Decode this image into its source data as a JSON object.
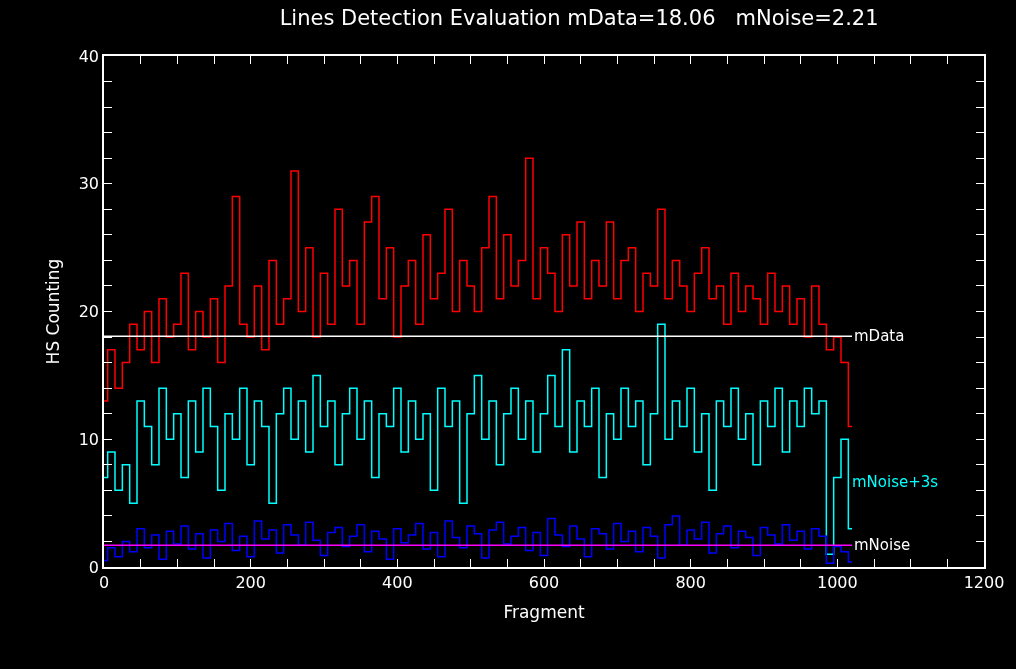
{
  "chart_data": {
    "type": "step",
    "title": "Lines Detection Evaluation mData=18.06   mNoise=2.21",
    "xlabel": "Fragment",
    "ylabel": "HS Counting",
    "x": [
      0,
      10,
      20,
      30,
      40,
      50,
      60,
      70,
      80,
      90,
      100,
      110,
      120,
      130,
      140,
      150,
      160,
      170,
      180,
      190,
      200,
      210,
      220,
      230,
      240,
      250,
      260,
      270,
      280,
      290,
      300,
      310,
      320,
      330,
      340,
      350,
      360,
      370,
      380,
      390,
      400,
      410,
      420,
      430,
      440,
      450,
      460,
      470,
      480,
      490,
      500,
      510,
      520,
      530,
      540,
      550,
      560,
      570,
      580,
      590,
      600,
      610,
      620,
      630,
      640,
      650,
      660,
      670,
      680,
      690,
      700,
      710,
      720,
      730,
      740,
      750,
      760,
      770,
      780,
      790,
      800,
      810,
      820,
      830,
      840,
      850,
      860,
      870,
      880,
      890,
      900,
      910,
      920,
      930,
      940,
      950,
      960,
      970,
      980,
      990,
      1000,
      1010,
      1020
    ],
    "series": [
      {
        "color": "#ff0000",
        "values": [
          13,
          17,
          14,
          16,
          19,
          17,
          20,
          16,
          21,
          18,
          19,
          23,
          17,
          20,
          18,
          21,
          16,
          22,
          29,
          19,
          18,
          22,
          17,
          24,
          19,
          21,
          31,
          20,
          25,
          18,
          23,
          19,
          28,
          22,
          24,
          19,
          27,
          29,
          21,
          25,
          18,
          22,
          24,
          19,
          26,
          21,
          23,
          28,
          20,
          24,
          22,
          20,
          25,
          29,
          21,
          26,
          22,
          24,
          32,
          21,
          25,
          23,
          20,
          26,
          22,
          27,
          21,
          24,
          22,
          27,
          21,
          24,
          25,
          20,
          23,
          22,
          28,
          21,
          24,
          22,
          20,
          23,
          25,
          21,
          22,
          19,
          23,
          20,
          22,
          21,
          19,
          23,
          20,
          22,
          19,
          21,
          18,
          22,
          19,
          17,
          18,
          16,
          11
        ]
      },
      {
        "name": "mNoise+3s",
        "color": "#00ffff",
        "values": [
          7,
          9,
          6,
          8,
          5,
          13,
          11,
          8,
          14,
          10,
          12,
          7,
          13,
          9,
          14,
          11,
          6,
          12,
          10,
          14,
          8,
          13,
          11,
          5,
          12,
          14,
          10,
          13,
          9,
          15,
          11,
          13,
          8,
          12,
          14,
          10,
          13,
          7,
          12,
          11,
          14,
          9,
          13,
          10,
          12,
          6,
          14,
          11,
          13,
          5,
          12,
          15,
          10,
          13,
          8,
          12,
          14,
          10,
          13,
          9,
          12,
          15,
          11,
          17,
          9,
          13,
          11,
          14,
          7,
          12,
          10,
          14,
          11,
          13,
          8,
          12,
          19,
          10,
          13,
          11,
          14,
          9,
          12,
          6,
          13,
          11,
          14,
          10,
          12,
          8,
          13,
          11,
          14,
          9,
          13,
          11,
          14,
          12,
          13,
          1,
          7,
          10,
          3
        ]
      },
      {
        "color": "#0000ff",
        "values": [
          0.5,
          1.5,
          0.8,
          2,
          1.2,
          3,
          1.5,
          2.5,
          0.6,
          2.8,
          1.8,
          3.2,
          1.4,
          2.6,
          0.7,
          2.9,
          2,
          3.4,
          1.3,
          2.4,
          0.8,
          3.6,
          2.2,
          2.9,
          1.1,
          3.3,
          2.5,
          1.7,
          3.5,
          2.1,
          0.9,
          2.7,
          3.1,
          1.6,
          2.4,
          3.3,
          1.2,
          2.8,
          2.2,
          0.6,
          3,
          1.9,
          2.5,
          3.4,
          1.4,
          2.7,
          0.8,
          3.6,
          2.3,
          1.5,
          3.2,
          2.6,
          0.7,
          2.9,
          3.5,
          1.8,
          2.4,
          3.1,
          1.3,
          2.7,
          0.9,
          3.8,
          2.5,
          1.6,
          3.2,
          2.2,
          0.8,
          3,
          2.6,
          1.4,
          3.4,
          2,
          2.8,
          1.2,
          3.1,
          2.4,
          0.7,
          3.3,
          4,
          1.7,
          2.9,
          2.2,
          3.5,
          1.1,
          2.6,
          3.2,
          1.5,
          2.8,
          2.3,
          0.9,
          3.1,
          2.5,
          1.8,
          3.3,
          2.1,
          2.8,
          1.4,
          3,
          2.4,
          0.3,
          1.6,
          1.2,
          0.4
        ]
      }
    ],
    "xlim": [
      0,
      1200
    ],
    "ylim": [
      0,
      40
    ],
    "xticks": [
      0,
      {
        "value": 50,
        "label": null
      },
      {
        "value": 100,
        "label": null
      },
      {
        "value": 150,
        "label": null
      },
      200,
      {
        "value": 250,
        "label": null
      },
      {
        "value": 300,
        "label": null
      },
      {
        "value": 350,
        "label": null
      },
      400,
      {
        "value": 450,
        "label": null
      },
      {
        "value": 500,
        "label": null
      },
      {
        "value": 550,
        "label": null
      },
      600,
      {
        "value": 650,
        "label": null
      },
      {
        "value": 700,
        "label": null
      },
      {
        "value": 750,
        "label": null
      },
      800,
      {
        "value": 850,
        "label": null
      },
      {
        "value": 900,
        "label": null
      },
      {
        "value": 950,
        "label": null
      },
      1000,
      {
        "value": 1050,
        "label": null
      },
      {
        "value": 1100,
        "label": null
      },
      {
        "value": 1150,
        "label": null
      },
      1200
    ],
    "yticks": [
      0,
      {
        "value": 2,
        "label": null
      },
      {
        "value": 4,
        "label": null
      },
      {
        "value": 6,
        "label": null
      },
      {
        "value": 8,
        "label": null
      },
      10,
      {
        "value": 12,
        "label": null
      },
      {
        "value": 14,
        "label": null
      },
      {
        "value": 16,
        "label": null
      },
      {
        "value": 18,
        "label": null
      },
      20,
      {
        "value": 22,
        "label": null
      },
      {
        "value": 24,
        "label": null
      },
      {
        "value": 26,
        "label": null
      },
      {
        "value": 28,
        "label": null
      },
      30,
      {
        "value": 32,
        "label": null
      },
      {
        "value": 34,
        "label": null
      },
      {
        "value": 36,
        "label": null
      },
      {
        "value": 38,
        "label": null
      },
      40
    ],
    "ref_lines": [
      {
        "axis": "y",
        "value": 18.06,
        "label": "mData",
        "color": "#ffffff"
      },
      {
        "axis": "y",
        "value": 1.7,
        "label": "mNoise",
        "color": "#ff00ff"
      }
    ],
    "grid": false,
    "legend": false,
    "marker": "none",
    "line_style": "solid"
  }
}
